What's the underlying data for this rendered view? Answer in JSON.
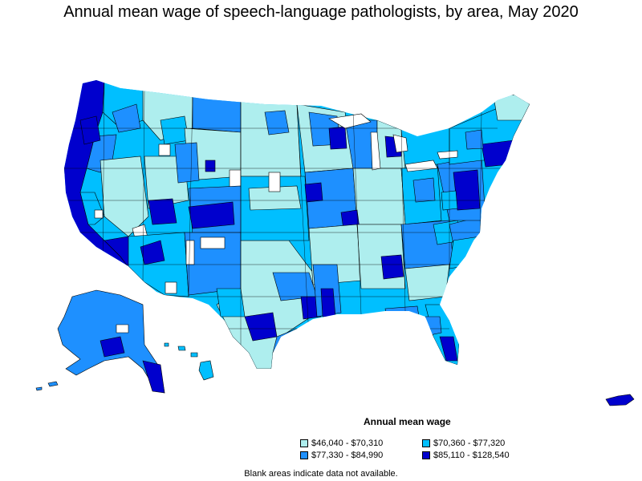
{
  "title": "Annual mean wage of speech-language pathologists, by area, May 2020",
  "legend": {
    "title": "Annual mean wage",
    "items": [
      {
        "label": "$46,040 - $70,310",
        "color": "#aeeeee"
      },
      {
        "label": "$70,360 - $77,320",
        "color": "#00bfff"
      },
      {
        "label": "$77,330 - $84,990",
        "color": "#1e90ff"
      },
      {
        "label": "$85,110 - $128,540",
        "color": "#0000cd"
      }
    ]
  },
  "footnote": "Blank areas indicate data not available.",
  "colors": {
    "tier1": "#aeeeee",
    "tier2": "#00bfff",
    "tier3": "#1e90ff",
    "tier4": "#0000cd",
    "no_data": "#ffffff",
    "border": "#000000"
  }
}
